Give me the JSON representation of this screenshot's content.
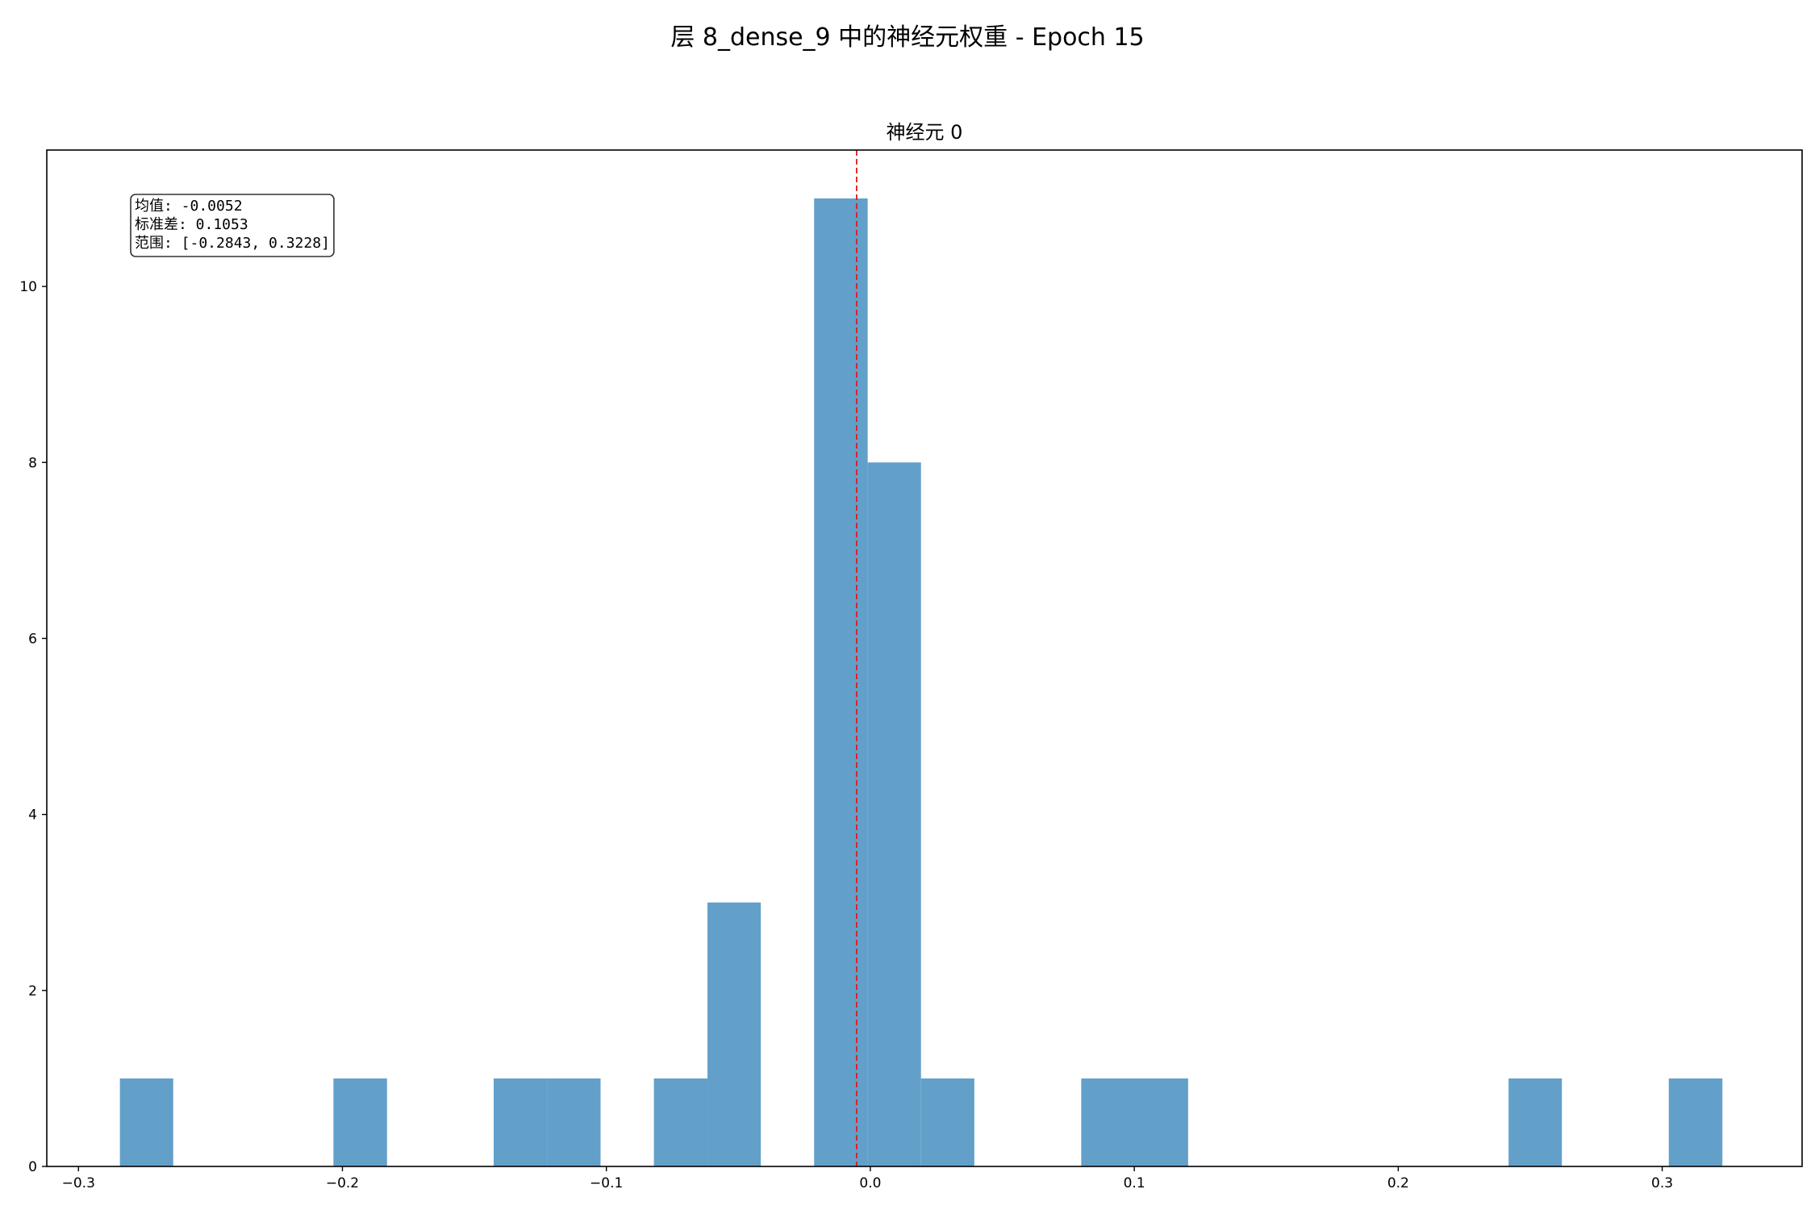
{
  "chart_data": {
    "type": "bar",
    "suptitle": "层 8_dense_9 中的神经元权重 - Epoch 15",
    "title": "神经元 0",
    "xlabel": "",
    "ylabel": "",
    "xlim": [
      -0.312,
      0.353
    ],
    "ylim": [
      0,
      11.55
    ],
    "x_ticks": [
      -0.3,
      -0.2,
      -0.1,
      0.0,
      0.1,
      0.2,
      0.3
    ],
    "x_tick_labels": [
      "−0.3",
      "−0.2",
      "−0.1",
      "0.0",
      "0.1",
      "0.2",
      "0.3"
    ],
    "y_ticks": [
      0,
      2,
      4,
      6,
      8,
      10
    ],
    "y_tick_labels": [
      "0",
      "2",
      "4",
      "6",
      "8",
      "10"
    ],
    "bin_edges": [
      -0.2843,
      -0.2641,
      -0.2438,
      -0.2236,
      -0.2034,
      -0.1831,
      -0.1629,
      -0.1427,
      -0.1224,
      -0.1022,
      -0.082,
      -0.0617,
      -0.0415,
      -0.0213,
      -0.001,
      0.0192,
      0.0394,
      0.0597,
      0.0799,
      0.1001,
      0.1204,
      0.1406,
      0.1608,
      0.1811,
      0.2013,
      0.2215,
      0.2418,
      0.262,
      0.2822,
      0.3025,
      0.3228
    ],
    "counts": [
      1,
      0,
      0,
      0,
      1,
      0,
      0,
      1,
      1,
      0,
      1,
      3,
      0,
      11,
      8,
      1,
      0,
      0,
      1,
      1,
      0,
      0,
      0,
      0,
      0,
      0,
      1,
      0,
      0,
      1
    ],
    "bar_color": "#62a0ca",
    "mean_line": {
      "x": -0.0052,
      "color": "#e31a1c",
      "style": "dashed"
    },
    "stats_box": [
      "均值: -0.0052",
      "标准差: 0.1053",
      "范围: [-0.2843, 0.3228]"
    ],
    "grid": false,
    "legend": "none"
  }
}
